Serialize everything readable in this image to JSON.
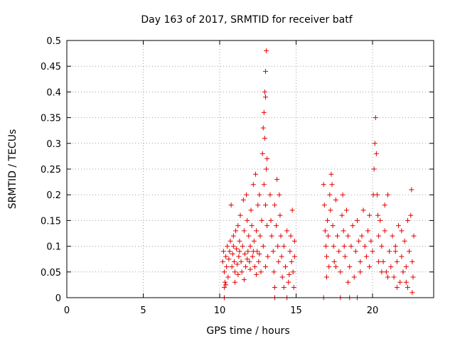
{
  "chart_data": {
    "type": "scatter",
    "title": "Day 163 of 2017, SRMTID for receiver batf",
    "xlabel": "GPS time / hours",
    "ylabel": "SRMTID / TECUs",
    "xlim": [
      0,
      24
    ],
    "ylim": [
      0,
      0.5
    ],
    "xticks": [
      "0",
      "5",
      "10",
      "15",
      "20"
    ],
    "xtick_values": [
      0,
      5,
      10,
      15,
      20
    ],
    "yticks": [
      "0",
      "0.05",
      "0.1",
      "0.15",
      "0.2",
      "0.25",
      "0.3",
      "0.35",
      "0.4",
      "0.45",
      "0.5"
    ],
    "ytick_values": [
      0,
      0.05,
      0.1,
      0.15,
      0.2,
      0.25,
      0.3,
      0.35,
      0.4,
      0.45,
      0.5
    ],
    "grid": true,
    "marker": "+",
    "color": "#e00000",
    "series": [
      {
        "name": "SRMTID",
        "points": [
          [
            10.2,
            0.07
          ],
          [
            10.25,
            0.09
          ],
          [
            10.3,
            0.05
          ],
          [
            10.35,
            0.03
          ],
          [
            10.4,
            0.08
          ],
          [
            10.45,
            0.06
          ],
          [
            10.5,
            0.1
          ],
          [
            10.55,
            0.04
          ],
          [
            10.6,
            0.075
          ],
          [
            10.65,
            0.09
          ],
          [
            10.3,
            0.02
          ],
          [
            10.4,
            0.025
          ],
          [
            10.7,
            0.11
          ],
          [
            10.75,
            0.18
          ],
          [
            10.8,
            0.06
          ],
          [
            10.85,
            0.085
          ],
          [
            10.9,
            0.12
          ],
          [
            10.95,
            0.07
          ],
          [
            11.0,
            0.05
          ],
          [
            11.05,
            0.13
          ],
          [
            11.1,
            0.095
          ],
          [
            11.15,
            0.065
          ],
          [
            11.2,
            0.14
          ],
          [
            11.25,
            0.08
          ],
          [
            11.3,
            0.11
          ],
          [
            11.35,
            0.16
          ],
          [
            11.4,
            0.07
          ],
          [
            11.45,
            0.05
          ],
          [
            11.5,
            0.1
          ],
          [
            11.55,
            0.19
          ],
          [
            11.6,
            0.13
          ],
          [
            11.65,
            0.085
          ],
          [
            11.7,
            0.06
          ],
          [
            11.75,
            0.2
          ],
          [
            11.8,
            0.15
          ],
          [
            11.85,
            0.09
          ],
          [
            11.9,
            0.12
          ],
          [
            11.95,
            0.07
          ],
          [
            12.0,
            0.1
          ],
          [
            12.05,
            0.17
          ],
          [
            12.1,
            0.14
          ],
          [
            12.15,
            0.08
          ],
          [
            12.2,
            0.22
          ],
          [
            12.25,
            0.11
          ],
          [
            12.3,
            0.06
          ],
          [
            12.35,
            0.24
          ],
          [
            12.4,
            0.13
          ],
          [
            12.45,
            0.09
          ],
          [
            12.5,
            0.18
          ],
          [
            12.55,
            0.07
          ],
          [
            12.6,
            0.2
          ],
          [
            12.65,
            0.12
          ],
          [
            12.7,
            0.05
          ],
          [
            12.75,
            0.15
          ],
          [
            12.8,
            0.28
          ],
          [
            12.85,
            0.33
          ],
          [
            12.9,
            0.36
          ],
          [
            12.95,
            0.4
          ],
          [
            13.0,
            0.44
          ],
          [
            13.05,
            0.48
          ],
          [
            13.0,
            0.39
          ],
          [
            12.95,
            0.31
          ],
          [
            13.1,
            0.27
          ],
          [
            13.05,
            0.25
          ],
          [
            12.9,
            0.22
          ],
          [
            13.0,
            0.18
          ],
          [
            13.1,
            0.14
          ],
          [
            12.85,
            0.1
          ],
          [
            13.15,
            0.08
          ],
          [
            13.0,
            0.06
          ],
          [
            13.3,
            0.2
          ],
          [
            13.35,
            0.15
          ],
          [
            13.4,
            0.12
          ],
          [
            13.5,
            0.09
          ],
          [
            13.55,
            0.05
          ],
          [
            13.6,
            0.18
          ],
          [
            13.7,
            0.14
          ],
          [
            13.75,
            0.23
          ],
          [
            13.8,
            0.1
          ],
          [
            13.85,
            0.07
          ],
          [
            13.9,
            0.2
          ],
          [
            13.95,
            0.16
          ],
          [
            14.0,
            0.12
          ],
          [
            14.05,
            0.08
          ],
          [
            14.1,
            0.04
          ],
          [
            14.2,
            0.1
          ],
          [
            14.3,
            0.06
          ],
          [
            14.4,
            0.13
          ],
          [
            14.5,
            0.03
          ],
          [
            14.6,
            0.09
          ],
          [
            14.7,
            0.07
          ],
          [
            14.75,
            0.17
          ],
          [
            14.8,
            0.05
          ],
          [
            14.85,
            0.02
          ],
          [
            14.9,
            0.08
          ],
          [
            13.6,
            0.02
          ],
          [
            14.2,
            0.02
          ],
          [
            14.9,
            0.11
          ],
          [
            14.65,
            0.12
          ],
          [
            14.55,
            0.045
          ],
          [
            16.8,
            0.22
          ],
          [
            16.85,
            0.18
          ],
          [
            16.9,
            0.13
          ],
          [
            16.95,
            0.1
          ],
          [
            17.0,
            0.08
          ],
          [
            17.05,
            0.15
          ],
          [
            17.1,
            0.12
          ],
          [
            17.15,
            0.06
          ],
          [
            17.2,
            0.2
          ],
          [
            17.25,
            0.17
          ],
          [
            17.3,
            0.24
          ],
          [
            17.35,
            0.22
          ],
          [
            17.4,
            0.14
          ],
          [
            17.45,
            0.1
          ],
          [
            17.5,
            0.07
          ],
          [
            17.6,
            0.19
          ],
          [
            17.7,
            0.12
          ],
          [
            17.8,
            0.09
          ],
          [
            17.9,
            0.05
          ],
          [
            18.0,
            0.16
          ],
          [
            18.05,
            0.2
          ],
          [
            18.1,
            0.13
          ],
          [
            18.15,
            0.1
          ],
          [
            18.2,
            0.08
          ],
          [
            18.3,
            0.17
          ],
          [
            18.4,
            0.12
          ],
          [
            18.5,
            0.06
          ],
          [
            18.6,
            0.1
          ],
          [
            18.7,
            0.14
          ],
          [
            18.8,
            0.04
          ],
          [
            18.9,
            0.09
          ],
          [
            19.0,
            0.15
          ],
          [
            19.1,
            0.11
          ],
          [
            19.2,
            0.07
          ],
          [
            19.3,
            0.12
          ],
          [
            19.4,
            0.17
          ],
          [
            19.5,
            0.1
          ],
          [
            19.6,
            0.08
          ],
          [
            19.7,
            0.13
          ],
          [
            19.8,
            0.16
          ],
          [
            19.9,
            0.11
          ],
          [
            20.0,
            0.09
          ],
          [
            20.05,
            0.2
          ],
          [
            20.1,
            0.25
          ],
          [
            20.15,
            0.3
          ],
          [
            20.2,
            0.35
          ],
          [
            20.25,
            0.28
          ],
          [
            20.3,
            0.2
          ],
          [
            20.35,
            0.16
          ],
          [
            20.4,
            0.12
          ],
          [
            20.5,
            0.15
          ],
          [
            20.6,
            0.1
          ],
          [
            20.7,
            0.07
          ],
          [
            20.8,
            0.13
          ],
          [
            20.9,
            0.05
          ],
          [
            21.0,
            0.2
          ],
          [
            21.1,
            0.09
          ],
          [
            21.2,
            0.06
          ],
          [
            21.3,
            0.12
          ],
          [
            21.4,
            0.04
          ],
          [
            21.5,
            0.1
          ],
          [
            21.6,
            0.07
          ],
          [
            21.7,
            0.14
          ],
          [
            21.8,
            0.03
          ],
          [
            21.9,
            0.08
          ],
          [
            22.0,
            0.05
          ],
          [
            22.1,
            0.11
          ],
          [
            22.2,
            0.06
          ],
          [
            22.3,
            0.02
          ],
          [
            22.4,
            0.09
          ],
          [
            22.5,
            0.16
          ],
          [
            22.55,
            0.21
          ],
          [
            22.6,
            0.07
          ],
          [
            22.65,
            0.04
          ],
          [
            22.7,
            0.12
          ],
          [
            22.3,
            0.15
          ],
          [
            21.9,
            0.13
          ],
          [
            21.5,
            0.09
          ],
          [
            20.8,
            0.18
          ],
          [
            20.6,
            0.05
          ],
          [
            11.0,
            0.03
          ],
          [
            11.2,
            0.045
          ],
          [
            11.6,
            0.035
          ],
          [
            12.0,
            0.055
          ],
          [
            12.4,
            0.045
          ],
          [
            11.8,
            0.075
          ],
          [
            12.2,
            0.09
          ],
          [
            10.9,
            0.1
          ],
          [
            11.3,
            0.09
          ],
          [
            12.6,
            0.085
          ],
          [
            17.0,
            0.04
          ],
          [
            17.6,
            0.06
          ],
          [
            18.4,
            0.03
          ],
          [
            19.2,
            0.05
          ],
          [
            19.8,
            0.06
          ],
          [
            20.4,
            0.07
          ],
          [
            21.0,
            0.04
          ],
          [
            21.6,
            0.02
          ],
          [
            22.2,
            0.03
          ],
          [
            22.6,
            0.01
          ],
          [
            10.3,
            0.0
          ],
          [
            13.6,
            0.0
          ],
          [
            14.4,
            0.0
          ],
          [
            16.8,
            0.0
          ],
          [
            17.9,
            0.0
          ],
          [
            18.5,
            0.0
          ],
          [
            19.0,
            0.0
          ]
        ]
      }
    ]
  }
}
